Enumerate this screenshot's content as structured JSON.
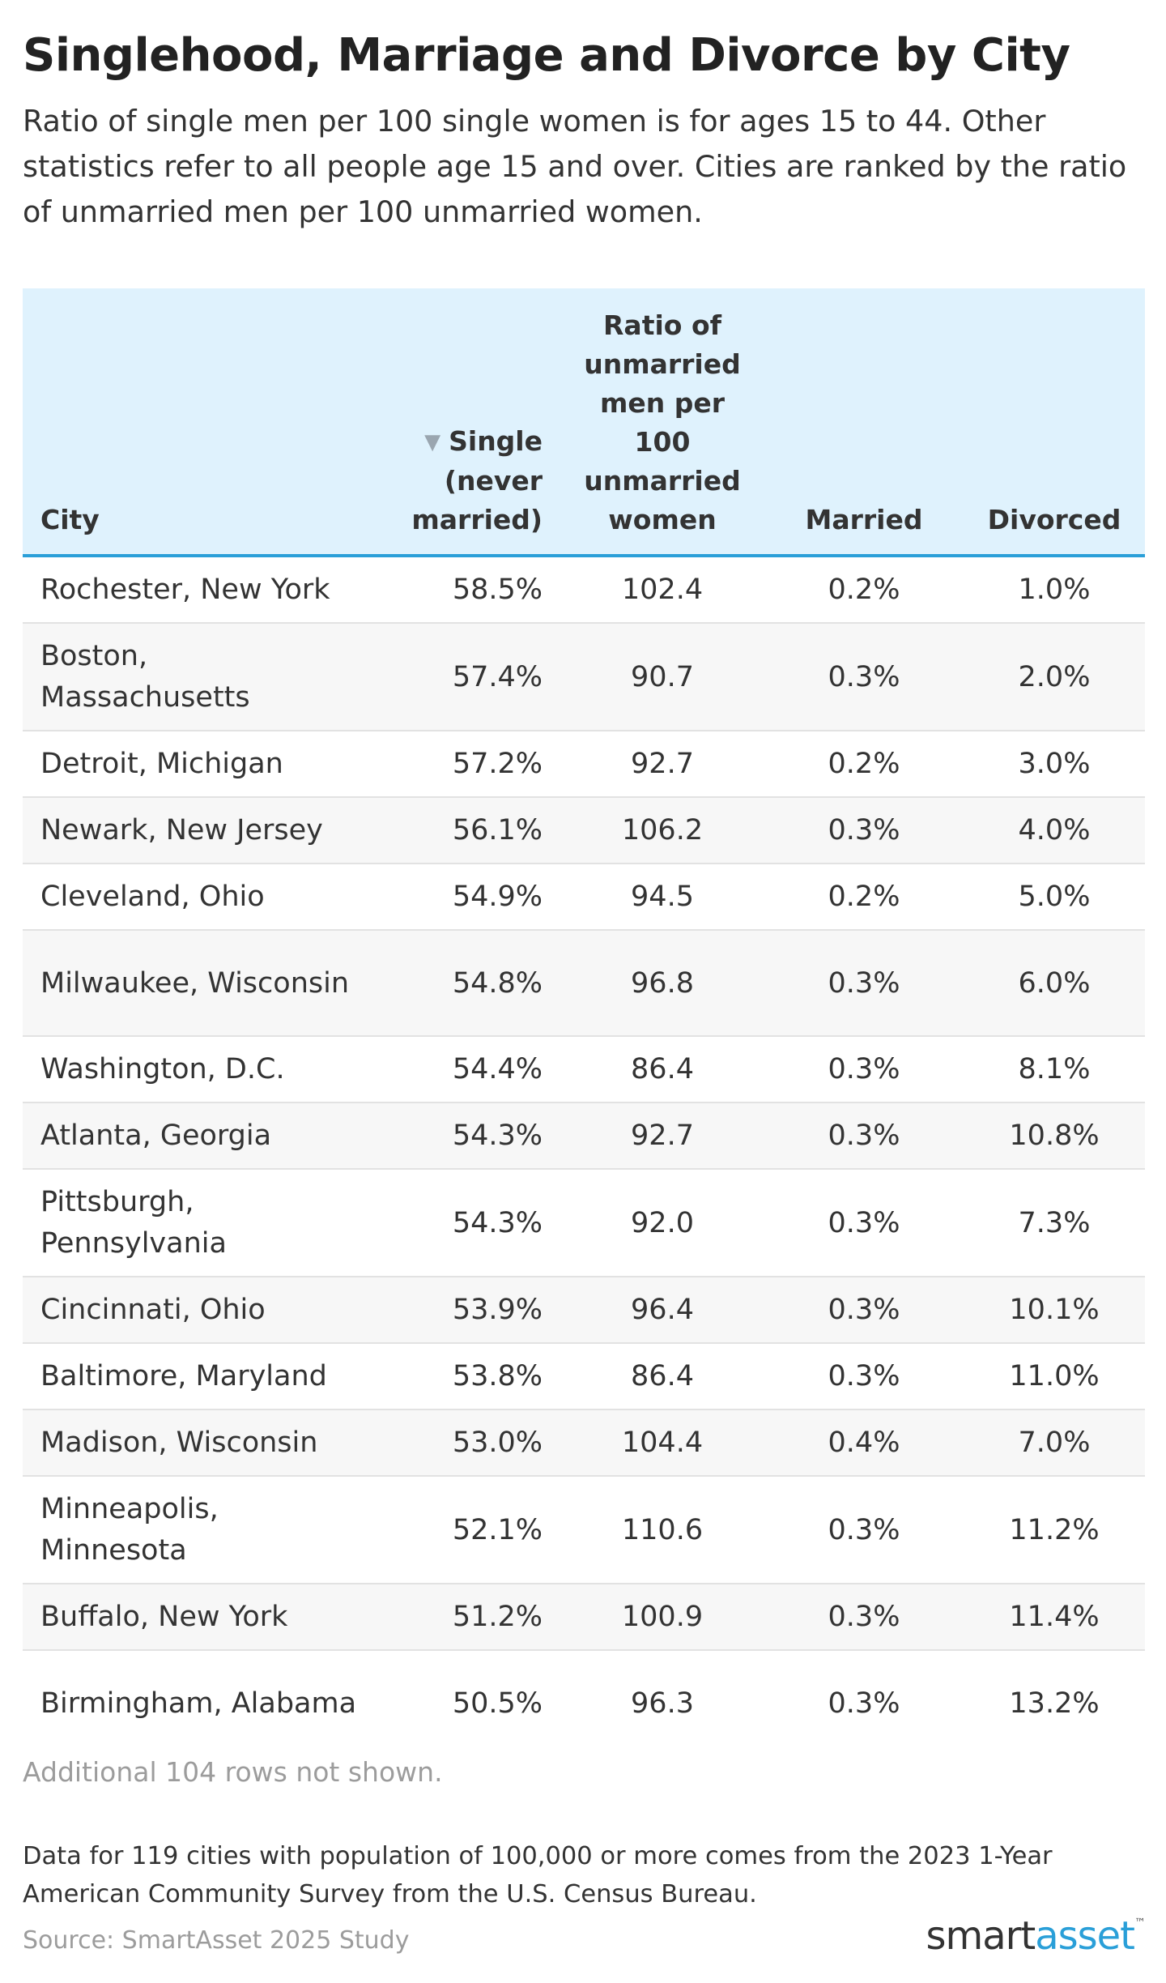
{
  "chart_data": {
    "type": "table",
    "title": "Singlehood, Marriage and Divorce by City",
    "subtitle": "Ratio of single men per 100 single women is for ages 15 to 44. Other statistics refer to all people age 15 and over. Cities are ranked by the ratio of unmarried men per 100 unmarried women.",
    "columns": {
      "city": "City",
      "single": "Single (never married)",
      "ratio": "Ratio of unmarried men per 100 unmarried women",
      "married": "Married",
      "divorced": "Divorced"
    },
    "sorted_column": "single",
    "sort_direction": "descending",
    "rows": [
      {
        "city": "Rochester, New York",
        "single": "58.5%",
        "ratio": "102.4",
        "married": "0.2%",
        "divorced": "1.0%"
      },
      {
        "city": "Boston, Massachusetts",
        "single": "57.4%",
        "ratio": "90.7",
        "married": "0.3%",
        "divorced": "2.0%"
      },
      {
        "city": "Detroit, Michigan",
        "single": "57.2%",
        "ratio": "92.7",
        "married": "0.2%",
        "divorced": "3.0%"
      },
      {
        "city": "Newark, New Jersey",
        "single": "56.1%",
        "ratio": "106.2",
        "married": "0.3%",
        "divorced": "4.0%"
      },
      {
        "city": "Cleveland, Ohio",
        "single": "54.9%",
        "ratio": "94.5",
        "married": "0.2%",
        "divorced": "5.0%"
      },
      {
        "city": "Milwaukee, Wisconsin",
        "single": "54.8%",
        "ratio": "96.8",
        "married": "0.3%",
        "divorced": "6.0%"
      },
      {
        "city": "Washington, D.C.",
        "single": "54.4%",
        "ratio": "86.4",
        "married": "0.3%",
        "divorced": "8.1%"
      },
      {
        "city": "Atlanta, Georgia",
        "single": "54.3%",
        "ratio": "92.7",
        "married": "0.3%",
        "divorced": "10.8%"
      },
      {
        "city": "Pittsburgh, Pennsylvania",
        "single": "54.3%",
        "ratio": "92.0",
        "married": "0.3%",
        "divorced": "7.3%"
      },
      {
        "city": "Cincinnati, Ohio",
        "single": "53.9%",
        "ratio": "96.4",
        "married": "0.3%",
        "divorced": "10.1%"
      },
      {
        "city": "Baltimore, Maryland",
        "single": "53.8%",
        "ratio": "86.4",
        "married": "0.3%",
        "divorced": "11.0%"
      },
      {
        "city": "Madison, Wisconsin",
        "single": "53.0%",
        "ratio": "104.4",
        "married": "0.4%",
        "divorced": "7.0%"
      },
      {
        "city": "Minneapolis, Minnesota",
        "single": "52.1%",
        "ratio": "110.6",
        "married": "0.3%",
        "divorced": "11.2%"
      },
      {
        "city": "Buffalo, New York",
        "single": "51.2%",
        "ratio": "100.9",
        "married": "0.3%",
        "divorced": "11.4%"
      },
      {
        "city": "Birmingham, Alabama",
        "single": "50.5%",
        "ratio": "96.3",
        "married": "0.3%",
        "divorced": "13.2%"
      }
    ],
    "hidden_rows_note": "Additional 104 rows not shown.",
    "note": "Data for 119 cities with population of 100,000 or more comes from the 2023 1-Year American Community Survey from the U.S. Census Bureau.",
    "source": "Source: SmartAsset 2025 Study",
    "colors": {
      "header_bg": "#dff2fd",
      "header_rule": "#2a9fd8",
      "stripe": "#f7f7f7",
      "brand_blue": "#2a9fd8"
    }
  },
  "logo": {
    "part1": "smart",
    "part2": "asset",
    "mark": "™"
  }
}
